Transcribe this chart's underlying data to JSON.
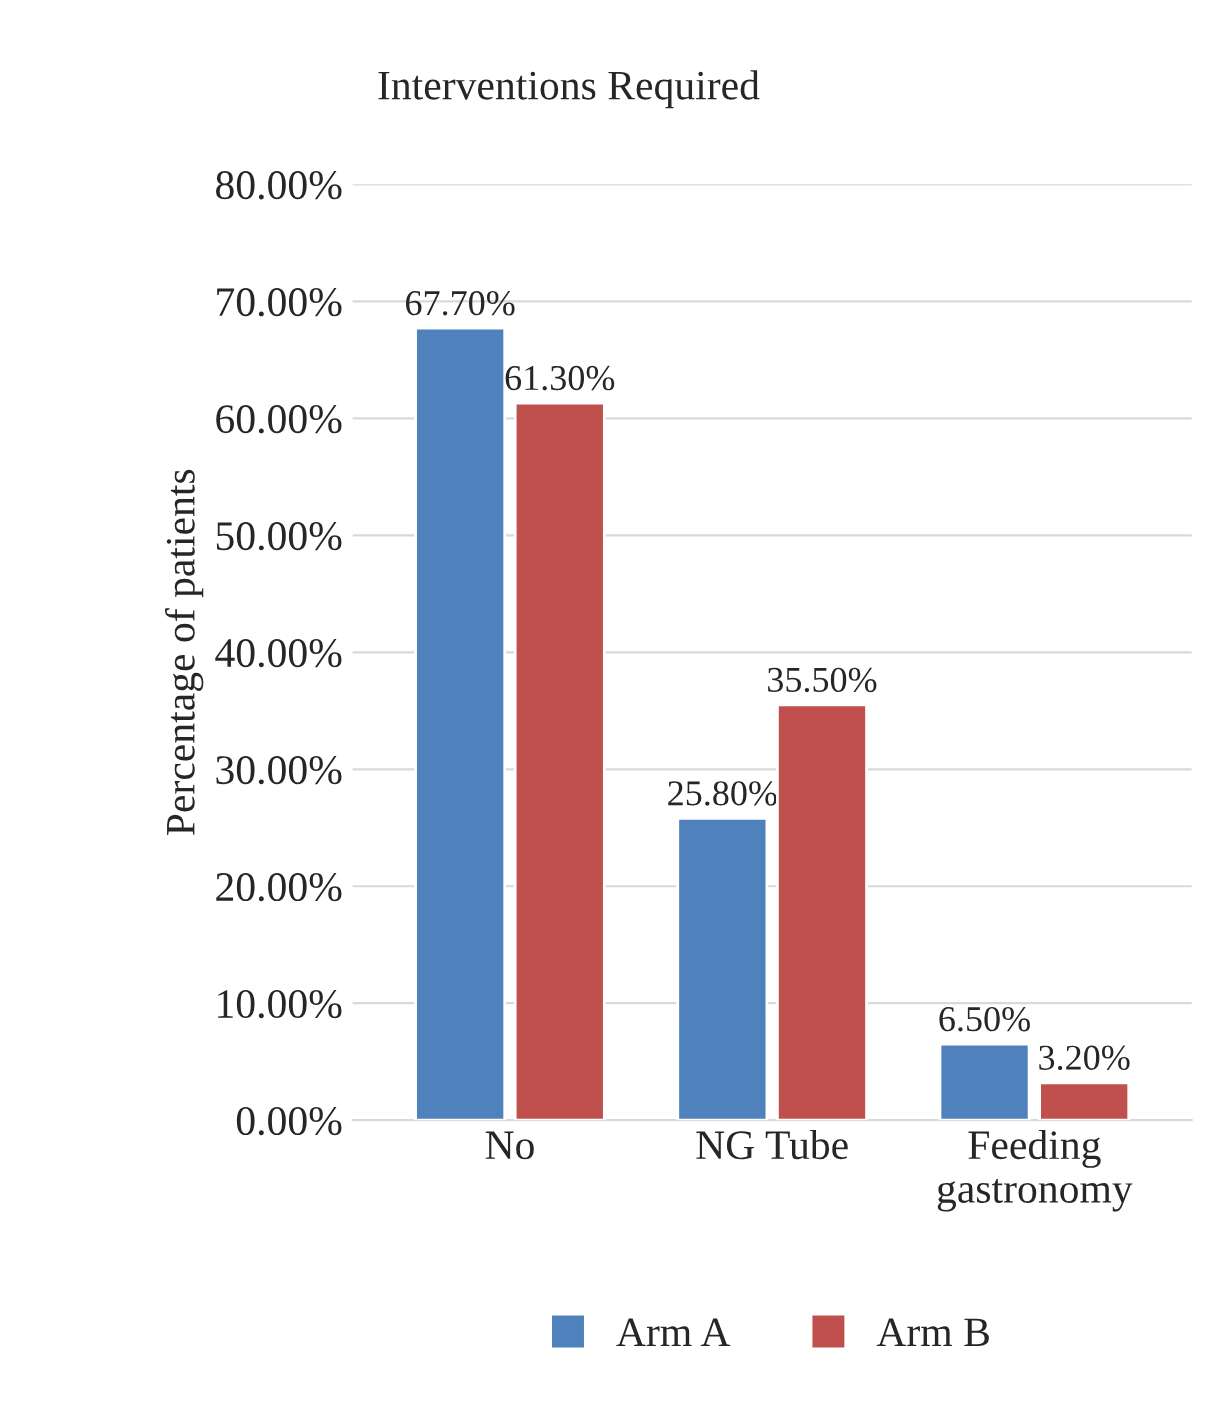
{
  "chart_data": {
    "type": "bar",
    "title": "Interventions Required",
    "ylabel": "Percentage of patients",
    "categories": [
      "No",
      "NG Tube",
      "Feeding\ngastronomy"
    ],
    "series": [
      {
        "name": "Arm A",
        "color": "#4f81bd",
        "values": [
          67.7,
          25.8,
          6.5
        ],
        "value_labels": [
          "67.70%",
          "25.80%",
          "6.50%"
        ]
      },
      {
        "name": "Arm B",
        "color": "#c0504d",
        "values": [
          61.3,
          35.5,
          3.2
        ],
        "value_labels": [
          "61.30%",
          "35.50%",
          "3.20%"
        ]
      }
    ],
    "ylim": [
      0,
      80
    ],
    "yticks": [
      {
        "value": 0,
        "label": "0.00%"
      },
      {
        "value": 10,
        "label": "10.00%"
      },
      {
        "value": 20,
        "label": "20.00%"
      },
      {
        "value": 30,
        "label": "30.00%"
      },
      {
        "value": 40,
        "label": "40.00%"
      },
      {
        "value": 50,
        "label": "50.00%"
      },
      {
        "value": 60,
        "label": "60.00%"
      },
      {
        "value": 70,
        "label": "70.00%"
      },
      {
        "value": 80,
        "label": "80.00%"
      }
    ],
    "grid": "y",
    "legend": "bottom"
  }
}
